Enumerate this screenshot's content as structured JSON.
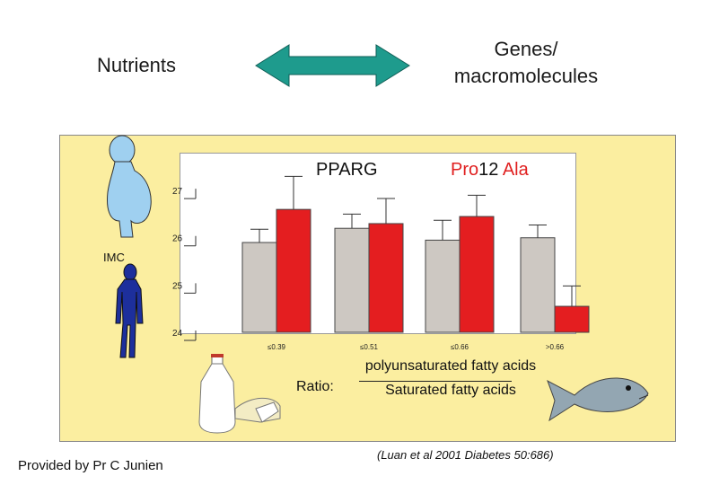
{
  "header": {
    "left_label": "Nutrients",
    "right_label_line1": "Genes/",
    "right_label_line2": "macromolecules"
  },
  "chart_data": {
    "type": "bar",
    "title_gene": "PPARG",
    "title_variant_pro": "Pro",
    "title_variant_12": "12",
    "title_variant_ala": "Ala",
    "ylabel": "IMC",
    "ylim": [
      24,
      27.8
    ],
    "yticks": [
      "27",
      "26",
      "25",
      "24"
    ],
    "categories": [
      "≤0.39",
      "≤0.51",
      "≤0.66",
      ">0.66"
    ],
    "series": [
      {
        "name": "Pro",
        "color": "#cdc8c2",
        "values": [
          25.9,
          26.2,
          25.95,
          26.0
        ],
        "errors": [
          0.28,
          0.3,
          0.42,
          0.27
        ]
      },
      {
        "name": "Ala",
        "color": "#e41e20",
        "values": [
          26.6,
          26.3,
          26.45,
          24.55
        ],
        "errors": [
          0.7,
          0.53,
          0.45,
          0.43
        ]
      }
    ]
  },
  "ratio": {
    "label": "Ratio:",
    "numerator": "polyunsaturated fatty acids",
    "denominator": "Saturated fatty acids"
  },
  "credit": "Provided by Pr C Junien",
  "citation": "(Luan et al 2001 Diabetes 50:686)"
}
